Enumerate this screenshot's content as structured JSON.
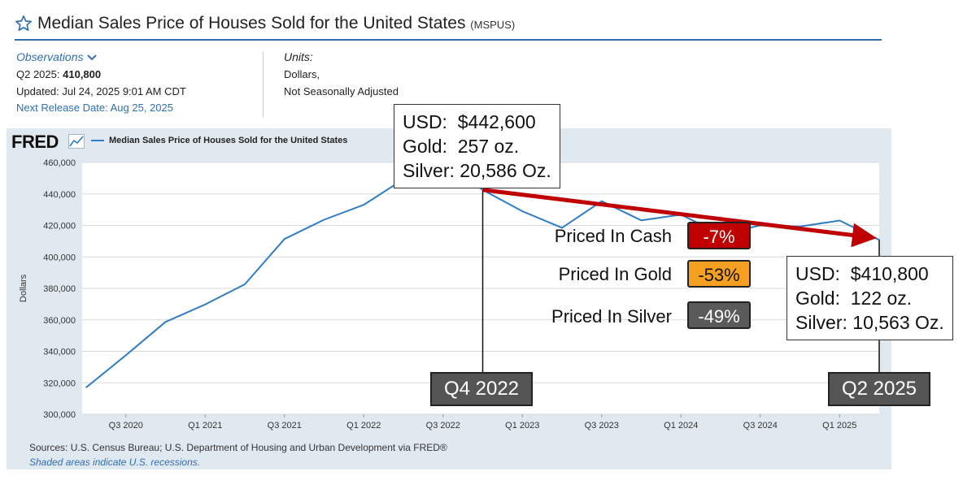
{
  "header": {
    "title": "Median Sales Price of Houses Sold for the United States",
    "series_id": "(MSPUS)"
  },
  "observations": {
    "label": "Observations",
    "latest_prefix": "Q2 2025:",
    "latest_value": "410,800",
    "updated": "Updated: Jul 24, 2025 9:01 AM CDT",
    "next_release": "Next Release Date: Aug 25, 2025"
  },
  "units": {
    "label": "Units:",
    "line1": "Dollars,",
    "line2": "Not Seasonally Adjusted"
  },
  "brand": {
    "logo": "FRED"
  },
  "legend": {
    "label": "Median Sales Price of Houses Sold for the United States"
  },
  "footer": {
    "sources": "Sources: U.S. Census Bureau; U.S. Department of Housing and Urban Development via FRED®",
    "shaded": "Shaded areas indicate U.S. recessions."
  },
  "annotations": {
    "start": {
      "usd": "USD:  $442,600",
      "gold": "Gold:  257 oz.",
      "silver": "Silver: 20,586 Oz."
    },
    "end": {
      "usd": "USD:  $410,800",
      "gold": "Gold:  122 oz.",
      "silver": "Silver: 10,563 Oz."
    },
    "start_date": "Q4 2022",
    "end_date": "Q2 2025",
    "comparisons": [
      {
        "label": "Priced In Cash",
        "value": "-7%",
        "color": "#c00000",
        "text_color": "#ffffff"
      },
      {
        "label": "Priced In Gold",
        "value": "-53%",
        "color": "#f5a020",
        "text_color": "#111111"
      },
      {
        "label": "Priced In Silver",
        "value": "-49%",
        "color": "#5a5a5a",
        "text_color": "#ffffff"
      }
    ]
  },
  "colors": {
    "series": "#2f7dc4",
    "arrow": "#c00000",
    "accent": "#2f6fb1"
  },
  "chart_data": {
    "type": "line",
    "ylabel": "Dollars",
    "ylim": [
      300000,
      460000
    ],
    "yticks": [
      300000,
      320000,
      340000,
      360000,
      380000,
      400000,
      420000,
      440000,
      460000
    ],
    "ytick_labels": [
      "300,000",
      "320,000",
      "340,000",
      "360,000",
      "380,000",
      "400,000",
      "420,000",
      "440,000",
      "460,000"
    ],
    "xtick_labels": [
      "Q3 2020",
      "Q1 2021",
      "Q3 2021",
      "Q1 2022",
      "Q3 2022",
      "Q1 2023",
      "Q3 2023",
      "Q1 2024",
      "Q3 2024",
      "Q1 2025"
    ],
    "x": [
      "Q2 2020",
      "Q3 2020",
      "Q4 2020",
      "Q1 2021",
      "Q2 2021",
      "Q3 2021",
      "Q4 2021",
      "Q1 2022",
      "Q2 2022",
      "Q3 2022",
      "Q4 2022",
      "Q1 2023",
      "Q2 2023",
      "Q3 2023",
      "Q4 2023",
      "Q1 2024",
      "Q2 2024",
      "Q3 2024",
      "Q4 2024",
      "Q1 2025",
      "Q2 2025"
    ],
    "series": [
      {
        "name": "Median Sales Price of Houses Sold for the United States",
        "values": [
          317100,
          337500,
          358700,
          369800,
          382600,
          411400,
          423600,
          433100,
          449300,
          468000,
          442600,
          429000,
          418500,
          435400,
          423200,
          426800,
          414500,
          420000,
          419300,
          423100,
          410800
        ]
      }
    ],
    "grid": true
  }
}
